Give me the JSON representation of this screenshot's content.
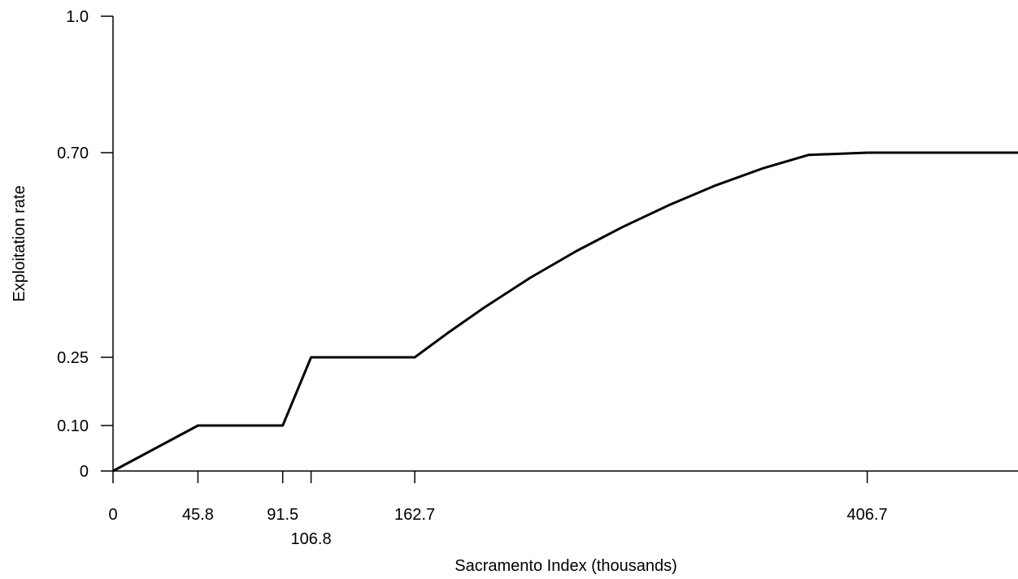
{
  "chart_data": {
    "type": "line",
    "title": "",
    "xlabel": "Sacramento Index (thousands)",
    "ylabel": "Exploitation rate",
    "xlim": [
      0,
      488
    ],
    "ylim": [
      0,
      1.0
    ],
    "grid": false,
    "x_ticks": [
      {
        "value": 0,
        "label": "0"
      },
      {
        "value": 45.8,
        "label": "45.8"
      },
      {
        "value": 91.5,
        "label": "91.5"
      },
      {
        "value": 106.8,
        "label": "106.8"
      },
      {
        "value": 162.7,
        "label": "162.7"
      },
      {
        "value": 406.7,
        "label": "406.7"
      }
    ],
    "y_ticks": [
      {
        "value": 0,
        "label": "0"
      },
      {
        "value": 0.1,
        "label": "0.10"
      },
      {
        "value": 0.25,
        "label": "0.25"
      },
      {
        "value": 0.7,
        "label": "0.70"
      },
      {
        "value": 1.0,
        "label": "1.0"
      }
    ],
    "series": [
      {
        "color": "#000000",
        "x": [
          0,
          45.8,
          91.5,
          106.8,
          162.7,
          180,
          200,
          225,
          250,
          275,
          300,
          325,
          350,
          375,
          406.7,
          488
        ],
        "y": [
          0,
          0.1,
          0.1,
          0.25,
          0.25,
          0.302,
          0.359,
          0.425,
          0.484,
          0.537,
          0.585,
          0.628,
          0.665,
          0.695,
          0.7,
          0.7
        ]
      }
    ]
  }
}
